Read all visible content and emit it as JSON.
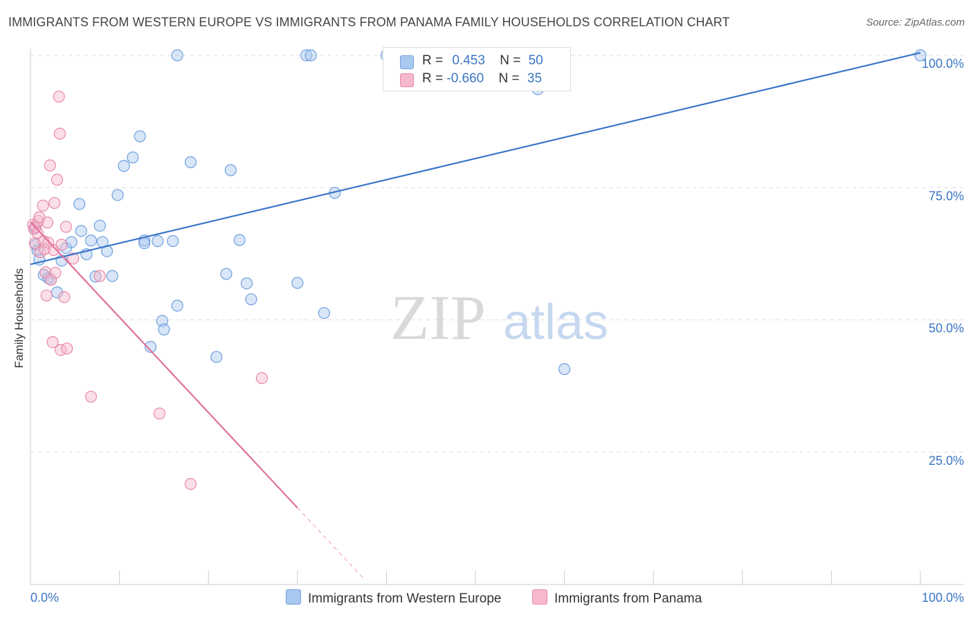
{
  "title": "IMMIGRANTS FROM WESTERN EUROPE VS IMMIGRANTS FROM PANAMA FAMILY HOUSEHOLDS CORRELATION CHART",
  "source": "Source: ZipAtlas.com",
  "watermark": {
    "zip": "ZIP",
    "atlas": "atlas"
  },
  "colors": {
    "blue_fill": "#a9c8ef",
    "blue_stroke": "#6f9fdc",
    "blue_line": "#3a75c9",
    "pink_fill": "#f6b9cb",
    "pink_stroke": "#e889a8",
    "pink_line": "#e0709a",
    "axis_label": "#3a75c4",
    "grid": "#dddddd"
  },
  "legend": {
    "blue": {
      "r_label": "R = ",
      "r_value": "0.453",
      "n_label": "N = ",
      "n_value": "50"
    },
    "pink": {
      "r_label": "R = ",
      "r_value": "-0.660",
      "n_label": "N = ",
      "n_value": "35"
    }
  },
  "chart_data": {
    "type": "scatter",
    "title": "IMMIGRANTS FROM WESTERN EUROPE VS IMMIGRANTS FROM PANAMA FAMILY HOUSEHOLDS CORRELATION CHART",
    "xlabel": "",
    "ylabel": "Family Households",
    "xlim": [
      0,
      100
    ],
    "ylim": [
      0,
      100
    ],
    "x_tick_labels": [
      "0.0%",
      "100.0%"
    ],
    "y_ticks": [
      25,
      50,
      75,
      100
    ],
    "y_tick_labels": [
      "25.0%",
      "50.0%",
      "75.0%",
      "100.0%"
    ],
    "grid": true,
    "legend_position": "bottom",
    "series": [
      {
        "name": "Immigrants from Western Europe",
        "color": "#a9c8ef",
        "points": [
          [
            0.5,
            67.4
          ],
          [
            0.6,
            64.2
          ],
          [
            0.8,
            63.1
          ],
          [
            1.0,
            61.4
          ],
          [
            1.5,
            58.5
          ],
          [
            2.0,
            57.9
          ],
          [
            2.3,
            57.6
          ],
          [
            3.0,
            55.2
          ],
          [
            3.5,
            61.2
          ],
          [
            4.0,
            63.6
          ],
          [
            4.6,
            64.7
          ],
          [
            5.5,
            71.9
          ],
          [
            5.7,
            66.8
          ],
          [
            6.3,
            62.4
          ],
          [
            6.8,
            65.0
          ],
          [
            7.3,
            58.2
          ],
          [
            7.8,
            67.8
          ],
          [
            8.1,
            64.7
          ],
          [
            8.6,
            63.0
          ],
          [
            9.2,
            58.3
          ],
          [
            9.8,
            73.6
          ],
          [
            10.5,
            79.1
          ],
          [
            11.5,
            80.7
          ],
          [
            12.3,
            84.7
          ],
          [
            12.8,
            65.0
          ],
          [
            12.8,
            64.5
          ],
          [
            13.5,
            44.9
          ],
          [
            14.3,
            64.9
          ],
          [
            14.8,
            49.8
          ],
          [
            15.0,
            48.2
          ],
          [
            16.0,
            64.9
          ],
          [
            16.5,
            100.0
          ],
          [
            16.5,
            52.7
          ],
          [
            18.0,
            79.8
          ],
          [
            20.9,
            43.0
          ],
          [
            22.0,
            58.7
          ],
          [
            22.5,
            78.3
          ],
          [
            23.5,
            65.1
          ],
          [
            24.3,
            56.9
          ],
          [
            24.8,
            53.9
          ],
          [
            30.0,
            57.0
          ],
          [
            31.0,
            100.0
          ],
          [
            31.5,
            100.0
          ],
          [
            33.0,
            51.3
          ],
          [
            34.2,
            74.0
          ],
          [
            40.0,
            100.0
          ],
          [
            48.0,
            100.0
          ],
          [
            57.0,
            93.6
          ],
          [
            60.0,
            40.7
          ],
          [
            100.0,
            100.0
          ]
        ]
      },
      {
        "name": "Immigrants from Panama",
        "color": "#f6b9cb",
        "points": [
          [
            0.3,
            68.0
          ],
          [
            0.4,
            67.2
          ],
          [
            0.5,
            64.5
          ],
          [
            0.6,
            67.6
          ],
          [
            0.8,
            66.4
          ],
          [
            0.9,
            68.7
          ],
          [
            1.0,
            69.4
          ],
          [
            1.1,
            62.8
          ],
          [
            1.4,
            71.6
          ],
          [
            1.5,
            64.9
          ],
          [
            1.6,
            63.4
          ],
          [
            1.7,
            59.0
          ],
          [
            1.8,
            54.6
          ],
          [
            1.9,
            68.4
          ],
          [
            2.0,
            64.6
          ],
          [
            2.2,
            79.2
          ],
          [
            2.3,
            57.6
          ],
          [
            2.5,
            45.8
          ],
          [
            2.6,
            63.2
          ],
          [
            2.7,
            72.1
          ],
          [
            2.8,
            58.9
          ],
          [
            3.0,
            76.5
          ],
          [
            3.2,
            92.2
          ],
          [
            3.3,
            85.2
          ],
          [
            3.4,
            44.3
          ],
          [
            3.5,
            64.2
          ],
          [
            3.8,
            54.3
          ],
          [
            4.0,
            67.6
          ],
          [
            4.1,
            44.6
          ],
          [
            4.8,
            61.6
          ],
          [
            6.8,
            35.5
          ],
          [
            7.8,
            58.3
          ],
          [
            14.5,
            32.3
          ],
          [
            18.0,
            19.0
          ],
          [
            26.0,
            39.0
          ]
        ]
      }
    ],
    "trend_lines": [
      {
        "series": "Immigrants from Western Europe",
        "x": [
          0,
          100
        ],
        "y": [
          60.5,
          100.5
        ],
        "dashed_to": null
      },
      {
        "series": "Immigrants from Panama",
        "x": [
          0,
          30
        ],
        "y": [
          68.5,
          14.5
        ],
        "dashed_to": [
          37.5,
          1.0
        ]
      }
    ]
  }
}
